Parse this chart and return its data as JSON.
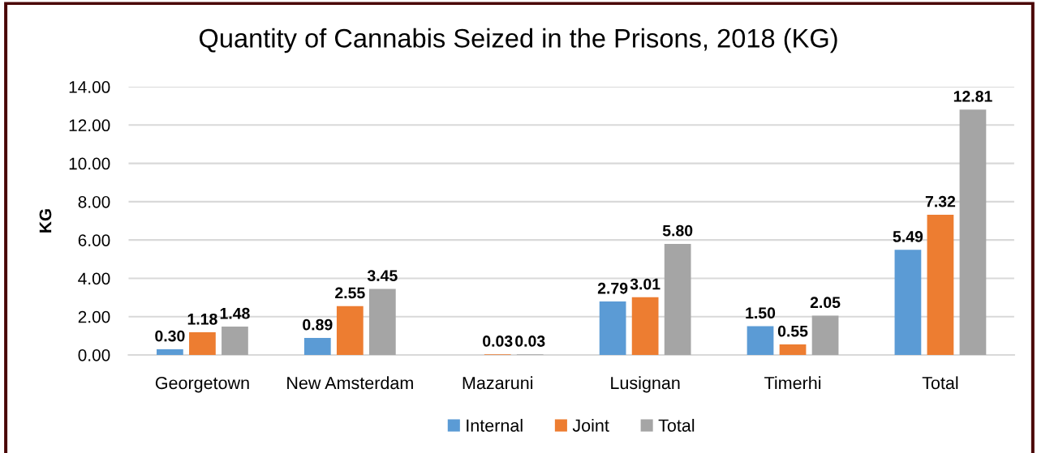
{
  "chart_data": {
    "type": "bar",
    "title": "Quantity of Cannabis Seized in the Prisons, 2018 (KG)",
    "ylabel": "KG",
    "categories": [
      "Georgetown",
      "New Amsterdam",
      "Mazaruni",
      "Lusignan",
      "Timerhi",
      "Total"
    ],
    "series": [
      {
        "name": "Internal",
        "color": "#5b9bd5",
        "values": [
          0.3,
          0.89,
          null,
          2.79,
          1.5,
          5.49
        ],
        "value_labels": [
          "0.30",
          "0.89",
          null,
          "2.79",
          "1.50",
          "5.49"
        ]
      },
      {
        "name": "Joint",
        "color": "#ed7d31",
        "values": [
          1.18,
          2.55,
          0.03,
          3.01,
          0.55,
          7.32
        ],
        "value_labels": [
          "1.18",
          "2.55",
          "0.03",
          "3.01",
          "0.55",
          "7.32"
        ]
      },
      {
        "name": "Total",
        "color": "#a5a5a5",
        "values": [
          1.48,
          3.45,
          0.03,
          5.8,
          2.05,
          12.81
        ],
        "value_labels": [
          "1.48",
          "3.45",
          "0.03",
          "5.80",
          "2.05",
          "12.81"
        ]
      }
    ],
    "ylim": [
      0,
      14
    ],
    "yticks": [
      {
        "value": 0,
        "label": "0.00"
      },
      {
        "value": 2,
        "label": "2.00"
      },
      {
        "value": 4,
        "label": "4.00"
      },
      {
        "value": 6,
        "label": "6.00"
      },
      {
        "value": 8,
        "label": "8.00"
      },
      {
        "value": 10,
        "label": "10.00"
      },
      {
        "value": 12,
        "label": "12.00"
      },
      {
        "value": 14,
        "label": "14.00"
      }
    ],
    "grid": "y",
    "legend": "bottom"
  }
}
